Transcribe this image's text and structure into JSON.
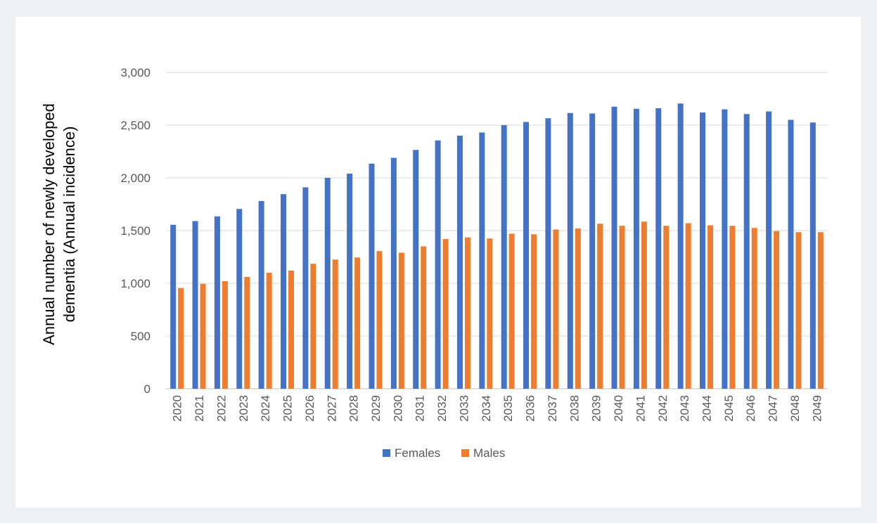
{
  "chart_data": {
    "type": "bar",
    "title": "",
    "xlabel": "",
    "ylabel_lines": [
      "Annual number of newly developed",
      "dementia (Annual incidence)"
    ],
    "ylim": [
      0,
      3000
    ],
    "yticks": [
      0,
      500,
      1000,
      1500,
      2000,
      2500,
      3000
    ],
    "ytick_labels": [
      "0",
      "500",
      "1,000",
      "1,500",
      "2,000",
      "2,500",
      "3,000"
    ],
    "grid": true,
    "legend_position": "bottom",
    "categories": [
      "2020",
      "2021",
      "2022",
      "2023",
      "2024",
      "2025",
      "2026",
      "2027",
      "2028",
      "2029",
      "2030",
      "2031",
      "2032",
      "2033",
      "2034",
      "2035",
      "2036",
      "2037",
      "2038",
      "2039",
      "2040",
      "2041",
      "2042",
      "2043",
      "2044",
      "2045",
      "2046",
      "2047",
      "2048",
      "2049"
    ],
    "series": [
      {
        "name": "Females",
        "color": "#4472c4",
        "values": [
          1555,
          1590,
          1635,
          1705,
          1780,
          1845,
          1910,
          2000,
          2040,
          2135,
          2190,
          2265,
          2355,
          2400,
          2430,
          2500,
          2530,
          2565,
          2615,
          2610,
          2675,
          2655,
          2660,
          2705,
          2620,
          2650,
          2605,
          2630,
          2550,
          2525
        ]
      },
      {
        "name": "Males",
        "color": "#ed7d31",
        "values": [
          955,
          995,
          1020,
          1060,
          1100,
          1120,
          1185,
          1225,
          1245,
          1305,
          1290,
          1350,
          1420,
          1435,
          1425,
          1470,
          1465,
          1510,
          1520,
          1565,
          1545,
          1585,
          1545,
          1570,
          1550,
          1545,
          1525,
          1495,
          1485,
          1485
        ]
      }
    ]
  }
}
